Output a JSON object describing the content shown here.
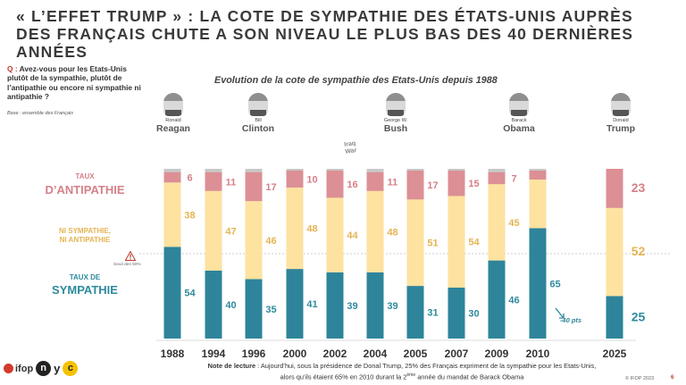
{
  "title": "« L’EFFET TRUMP » : LA COTE DE SYMPATHIE DES ÉTATS-UNIS AUPRÈS DES FRANÇAIS CHUTE A SON NIVEAU LE PLUS BAS DES 40 DERNIÈRES ANNÉES",
  "question": {
    "prefix": "Q :",
    "text": " Avez-vous pour les Etats-Unis plutôt de la sympathie, plutôt de l’antipathie ou encore ni sympathie ni antipathie ?",
    "base": "Base : ensemble des Français"
  },
  "legend": {
    "antipathie_small": "TAUX",
    "antipathie": "D’ANTIPATHIE",
    "ni_line1": "NI SYMPATHIE,",
    "ni_line2": "NI ANTIPATHIE",
    "sympathie_small": "TAUX DE",
    "sympathie": "SYMPATHIE"
  },
  "threshold": {
    "label": "Seuil des 50%",
    "icon": "warning-icon"
  },
  "presidents": [
    {
      "first": "Ronald",
      "last": "Reagan"
    },
    {
      "first": "Bill",
      "last": "Clinton"
    },
    {
      "first": "George W.",
      "last": "Bush"
    },
    {
      "first": "Barack",
      "last": "Obama"
    },
    {
      "first": "Donald",
      "last": "Trump"
    }
  ],
  "iraq_label": {
    "line1": "Iraq",
    "line2": "War"
  },
  "drop_label": "-40 pts",
  "note": {
    "label": "Note de lecture",
    "line1": " : Aujourd’hui, sous la présidence de Donal Trump, 25% des Français expriment de la sympathie pour les Etats-Unis,",
    "line2_before": "alors qu’ils étaient 65% en 2010 durant la 2",
    "line2_sup": "ème",
    "line2_after": " année du mandat de Barack Obama"
  },
  "footer": {
    "copyright": "© IFOP 2023",
    "page": "6",
    "logo_ifop": "ifop",
    "logo_n": "n",
    "logo_y": "y",
    "logo_c": "c"
  },
  "colors": {
    "sympathie": "#2e849a",
    "ni": "#fde2a0",
    "antipathie": "#dc8f95",
    "nsp": "#c8c8c8",
    "sym_text": "#2e8a9e",
    "ni_text": "#e5b452",
    "anti_text": "#d58088"
  },
  "chart_data": {
    "type": "bar",
    "stacked": true,
    "title": "Evolution de la cote de sympathie des Etats-Unis depuis 1988",
    "categories": [
      "1988",
      "1994",
      "1996",
      "2000",
      "2002",
      "2004",
      "2005",
      "2007",
      "2009",
      "2010",
      "2025"
    ],
    "series": [
      {
        "name": "Sympathie",
        "values": [
          54,
          40,
          35,
          41,
          39,
          39,
          31,
          30,
          46,
          65,
          25
        ]
      },
      {
        "name": "Ni sympathie, ni antipathie",
        "values": [
          38,
          47,
          46,
          48,
          44,
          48,
          51,
          54,
          45,
          null,
          52
        ]
      },
      {
        "name": "Antipathie",
        "values": [
          6,
          11,
          17,
          10,
          16,
          11,
          17,
          15,
          7,
          null,
          23
        ]
      }
    ],
    "ylim": [
      0,
      100
    ],
    "threshold": 50
  }
}
